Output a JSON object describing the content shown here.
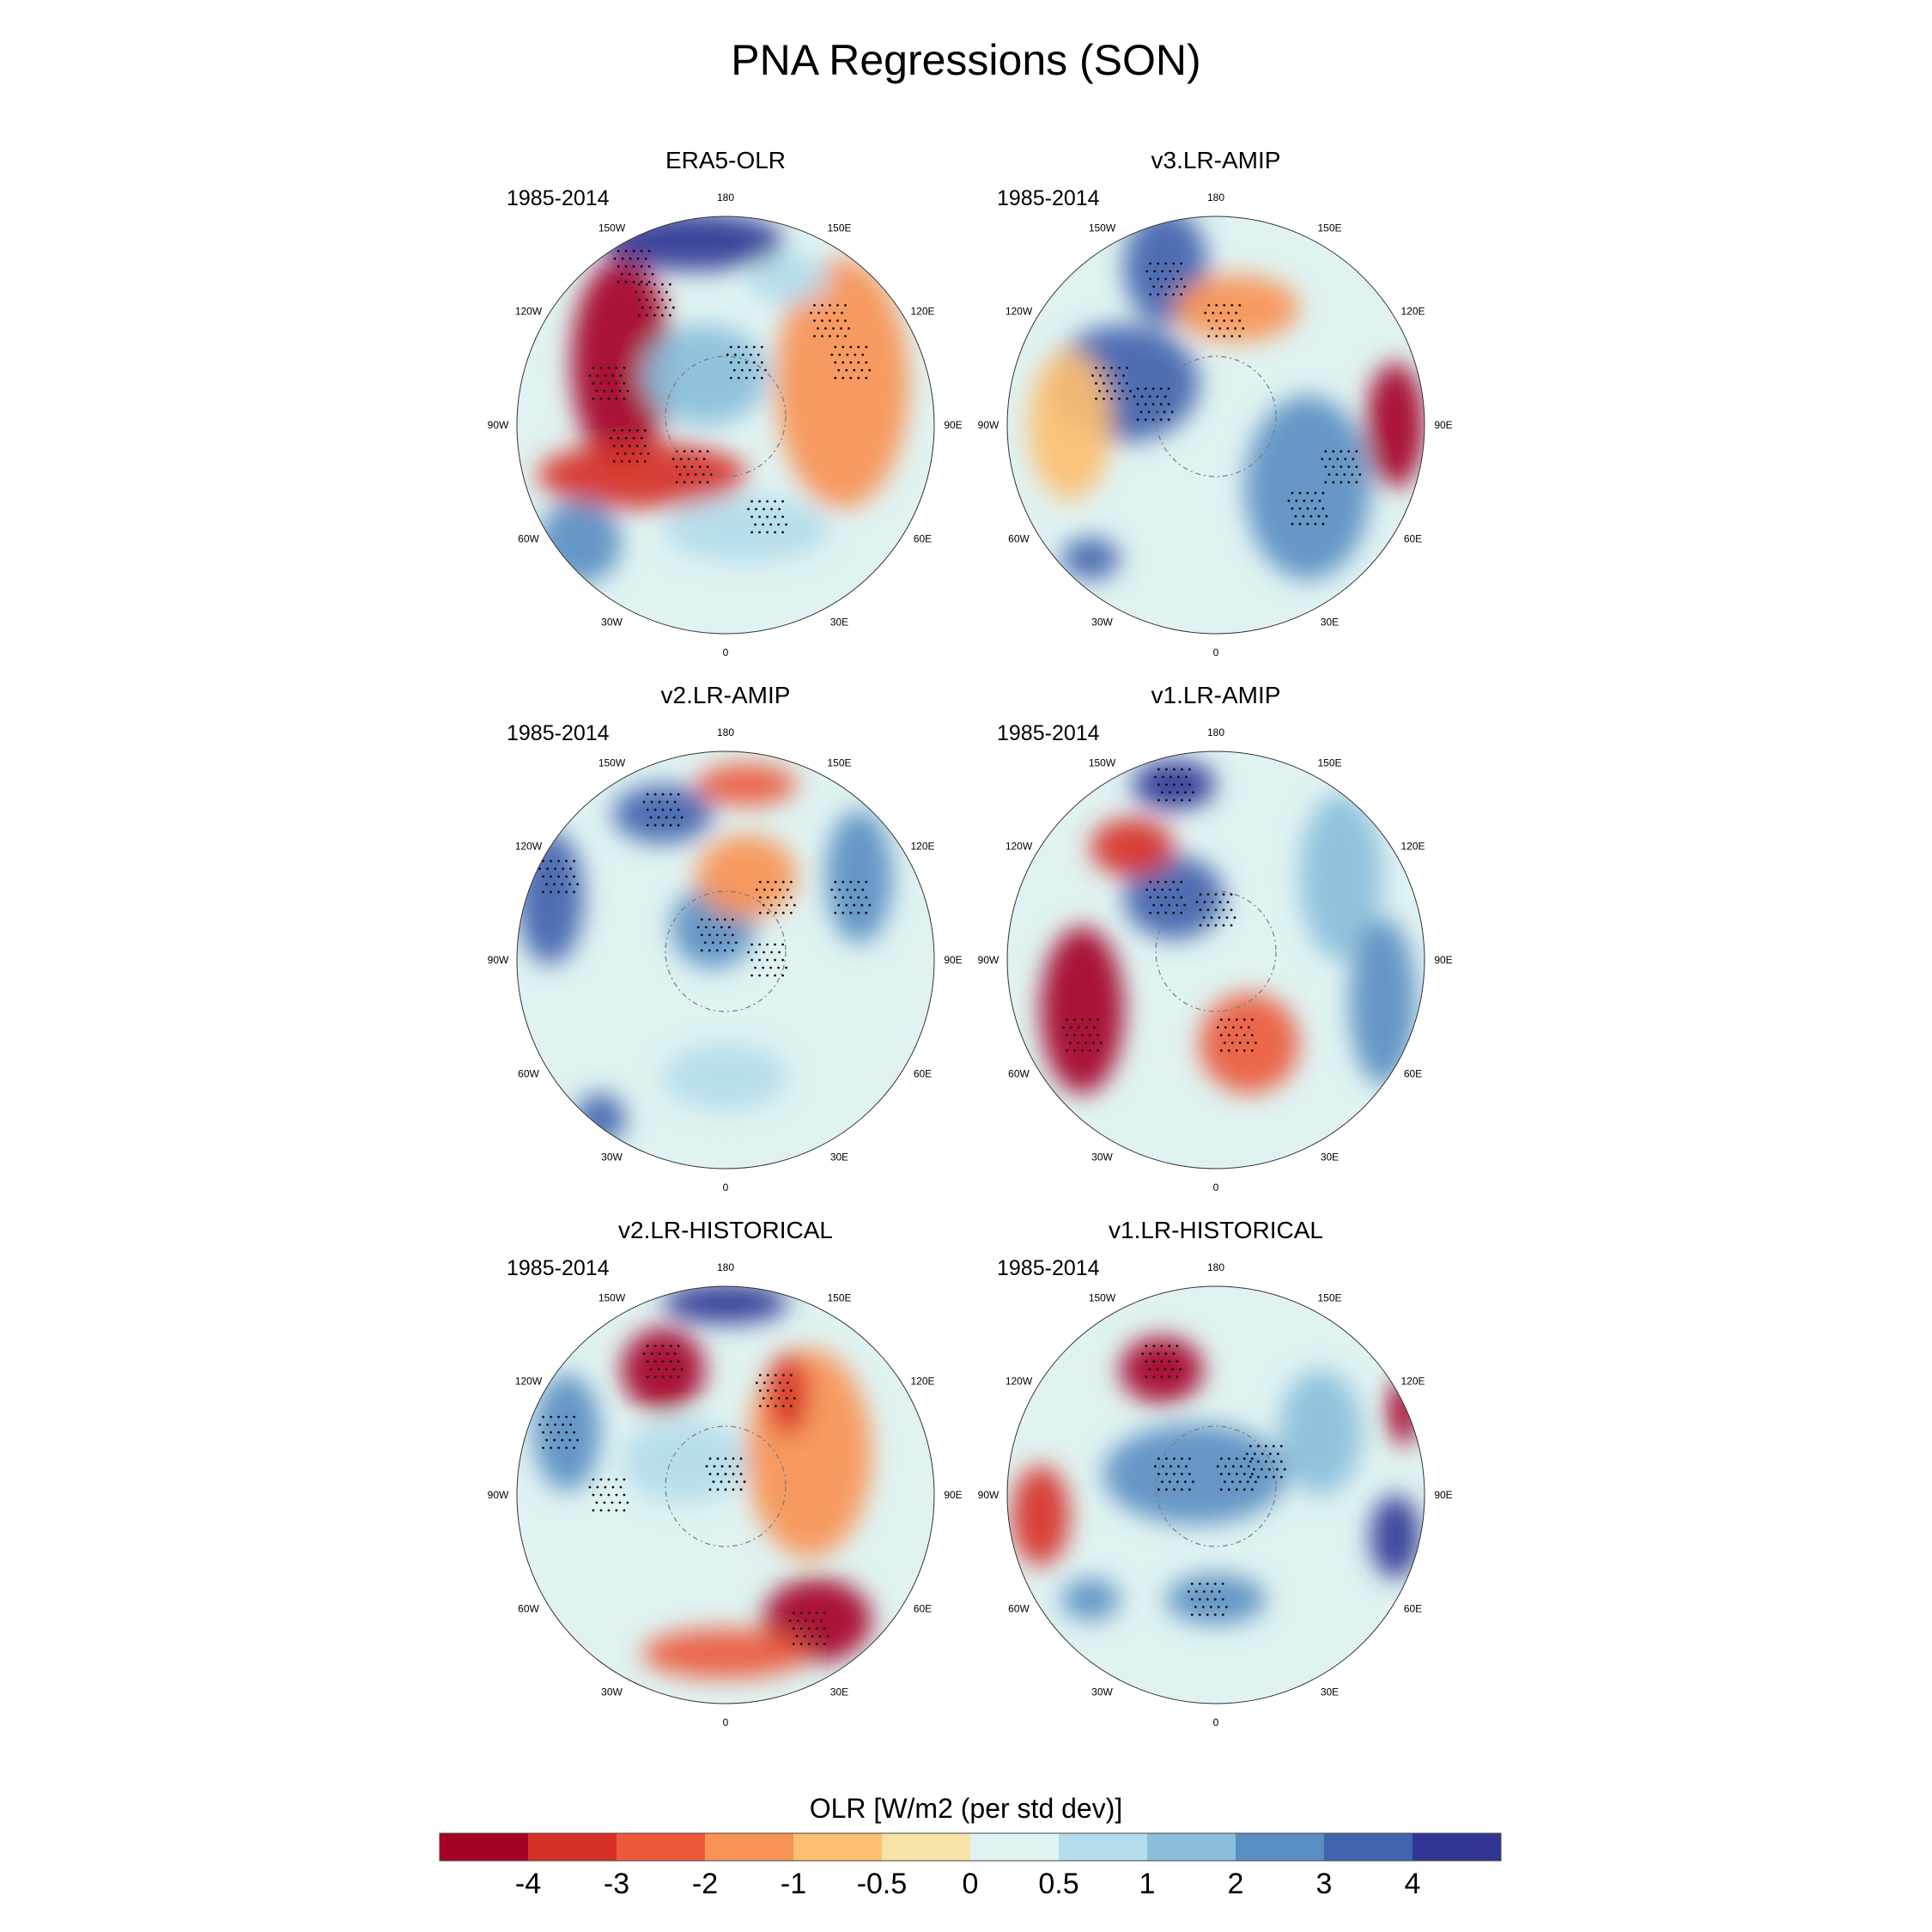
{
  "title": "PNA Regressions (SON)",
  "period": "1985-2014",
  "longitude_labels": [
    "180",
    "150E",
    "120E",
    "90E",
    "60E",
    "30E",
    "0",
    "30W",
    "60W",
    "90W",
    "120W",
    "150W"
  ],
  "panels": [
    {
      "title": "ERA5-OLR",
      "period": "1985-2014"
    },
    {
      "title": "v3.LR-AMIP",
      "period": "1985-2014"
    },
    {
      "title": "v2.LR-AMIP",
      "period": "1985-2014"
    },
    {
      "title": "v1.LR-AMIP",
      "period": "1985-2014"
    },
    {
      "title": "v2.LR-HISTORICAL",
      "period": "1985-2014"
    },
    {
      "title": "v1.LR-HISTORICAL",
      "period": "1985-2014"
    }
  ],
  "colorbar": {
    "title": "OLR [W/m2 (per std dev)]",
    "tick_labels": [
      "-4",
      "-3",
      "-2",
      "-1",
      "-0.5",
      "0",
      "0.5",
      "1",
      "2",
      "3",
      "4"
    ],
    "colors": [
      "#a50026",
      "#d73027",
      "#ec5a3c",
      "#f99355",
      "#fdbf71",
      "#f8e4a8",
      "#e0f3f2",
      "#b4dcec",
      "#8abfdb",
      "#5a8ec2",
      "#4263ad",
      "#313695"
    ]
  }
}
